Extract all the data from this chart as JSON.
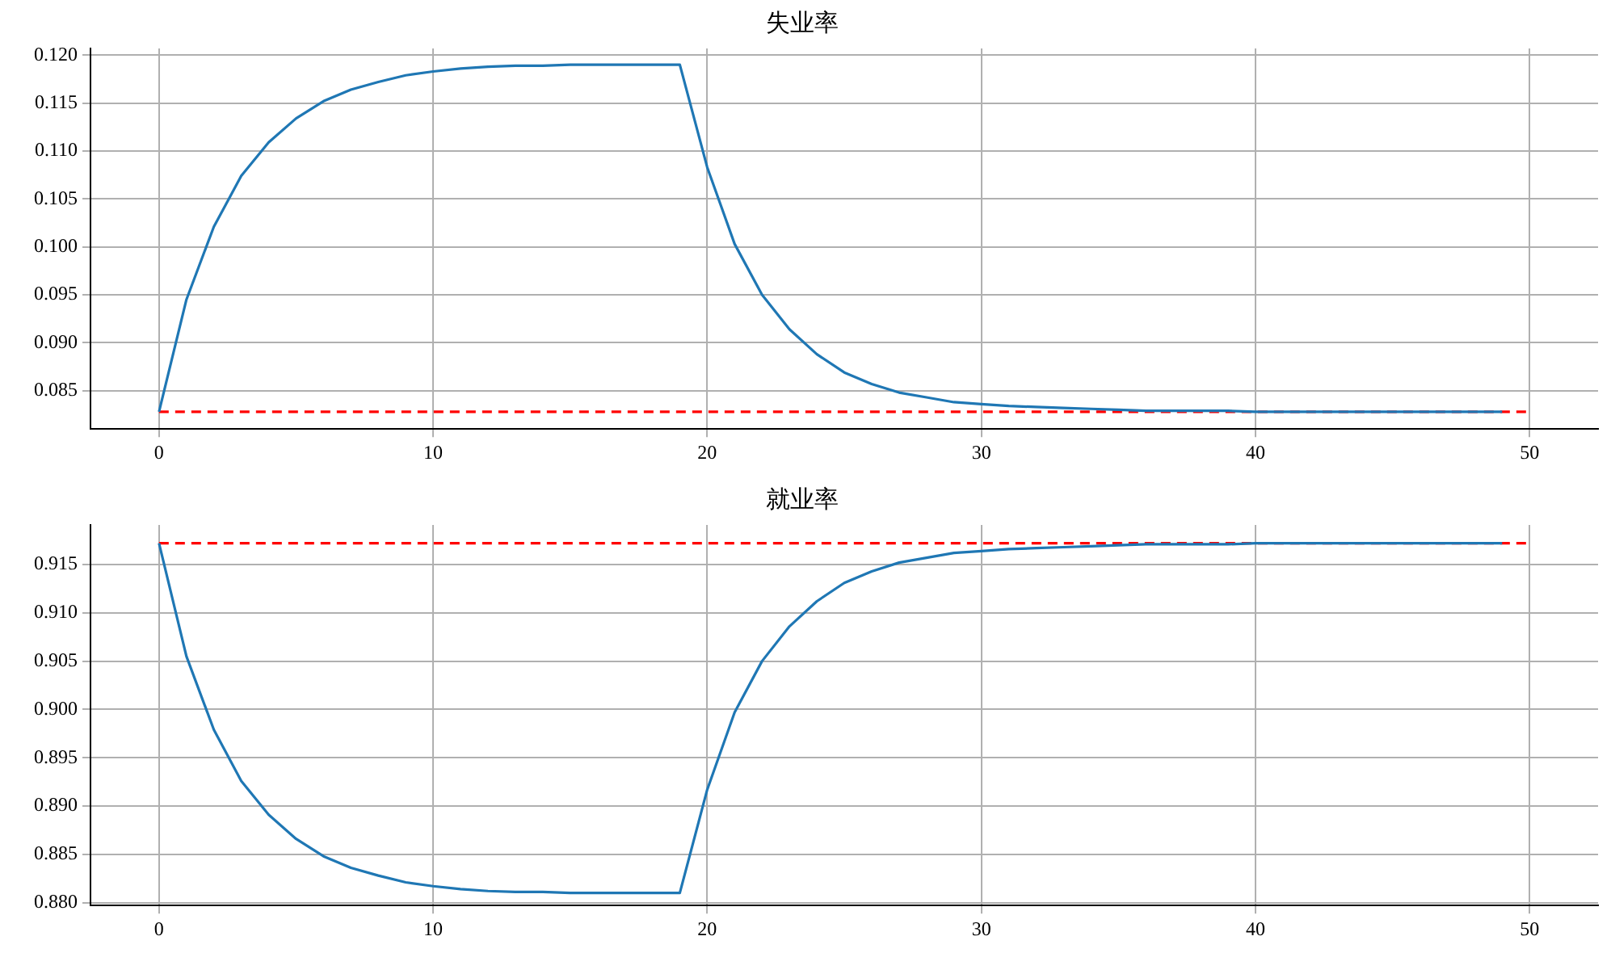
{
  "chart_data": [
    {
      "type": "line",
      "title": "失业率",
      "xlim": [
        -2.5,
        52.5
      ],
      "ylim": [
        0.081,
        0.1207
      ],
      "xticks": [
        0,
        10,
        20,
        30,
        40,
        50
      ],
      "yticks": [
        {
          "value": 0.085,
          "label": "0.085"
        },
        {
          "value": 0.09,
          "label": "0.090"
        },
        {
          "value": 0.095,
          "label": "0.095"
        },
        {
          "value": 0.1,
          "label": "0.100"
        },
        {
          "value": 0.105,
          "label": "0.105"
        },
        {
          "value": 0.11,
          "label": "0.110"
        },
        {
          "value": 0.115,
          "label": "0.115"
        },
        {
          "value": 0.12,
          "label": "0.120"
        }
      ],
      "grid": true,
      "marker": "none",
      "series": [
        {
          "color": "#1f77b4",
          "line_style": "solid",
          "x": [
            0,
            1,
            2,
            3,
            4,
            5,
            6,
            7,
            8,
            9,
            10,
            11,
            12,
            13,
            14,
            15,
            16,
            17,
            18,
            19,
            20,
            21,
            22,
            23,
            24,
            25,
            26,
            27,
            28,
            29,
            30,
            31,
            32,
            33,
            34,
            35,
            36,
            37,
            38,
            39,
            40,
            41,
            42,
            43,
            44,
            45,
            46,
            47,
            48,
            49
          ],
          "values": [
            0.0828,
            0.0945,
            0.1021,
            0.1074,
            0.1109,
            0.1134,
            0.1152,
            0.1164,
            0.1172,
            0.1179,
            0.1183,
            0.1186,
            0.1188,
            0.1189,
            0.1189,
            0.119,
            0.119,
            0.119,
            0.119,
            0.119,
            0.1083,
            0.1003,
            0.095,
            0.0914,
            0.0888,
            0.0869,
            0.0857,
            0.0848,
            0.0843,
            0.0838,
            0.0836,
            0.0834,
            0.0833,
            0.0832,
            0.0831,
            0.083,
            0.0829,
            0.0829,
            0.0829,
            0.0829,
            0.0828,
            0.0828,
            0.0828,
            0.0828,
            0.0828,
            0.0828,
            0.0828,
            0.0828,
            0.0828,
            0.0828
          ]
        },
        {
          "color": "#ff0000",
          "line_style": "dashed",
          "x": [
            0,
            50
          ],
          "values": [
            0.0828,
            0.0828
          ]
        }
      ]
    },
    {
      "type": "line",
      "title": "就业率",
      "xlim": [
        -2.5,
        52.5
      ],
      "ylim": [
        0.8797,
        0.9191
      ],
      "xticks": [
        0,
        10,
        20,
        30,
        40,
        50
      ],
      "yticks": [
        {
          "value": 0.88,
          "label": "0.880"
        },
        {
          "value": 0.885,
          "label": "0.885"
        },
        {
          "value": 0.89,
          "label": "0.890"
        },
        {
          "value": 0.895,
          "label": "0.895"
        },
        {
          "value": 0.9,
          "label": "0.900"
        },
        {
          "value": 0.905,
          "label": "0.905"
        },
        {
          "value": 0.91,
          "label": "0.910"
        },
        {
          "value": 0.915,
          "label": "0.915"
        }
      ],
      "grid": true,
      "marker": "none",
      "series": [
        {
          "color": "#1f77b4",
          "line_style": "solid",
          "x": [
            0,
            1,
            2,
            3,
            4,
            5,
            6,
            7,
            8,
            9,
            10,
            11,
            12,
            13,
            14,
            15,
            16,
            17,
            18,
            19,
            20,
            21,
            22,
            23,
            24,
            25,
            26,
            27,
            28,
            29,
            30,
            31,
            32,
            33,
            34,
            35,
            36,
            37,
            38,
            39,
            40,
            41,
            42,
            43,
            44,
            45,
            46,
            47,
            48,
            49
          ],
          "values": [
            0.9172,
            0.9055,
            0.8979,
            0.8926,
            0.8891,
            0.8866,
            0.8848,
            0.8836,
            0.8828,
            0.8821,
            0.8817,
            0.8814,
            0.8812,
            0.8811,
            0.8811,
            0.881,
            0.881,
            0.881,
            0.881,
            0.881,
            0.8917,
            0.8997,
            0.905,
            0.9086,
            0.9112,
            0.9131,
            0.9143,
            0.9152,
            0.9157,
            0.9162,
            0.9164,
            0.9166,
            0.9167,
            0.9168,
            0.9169,
            0.917,
            0.9171,
            0.9171,
            0.9171,
            0.9171,
            0.9172,
            0.9172,
            0.9172,
            0.9172,
            0.9172,
            0.9172,
            0.9172,
            0.9172,
            0.9172,
            0.9172
          ]
        },
        {
          "color": "#ff0000",
          "line_style": "dashed",
          "x": [
            0,
            50
          ],
          "values": [
            0.9172,
            0.9172
          ]
        }
      ]
    }
  ]
}
